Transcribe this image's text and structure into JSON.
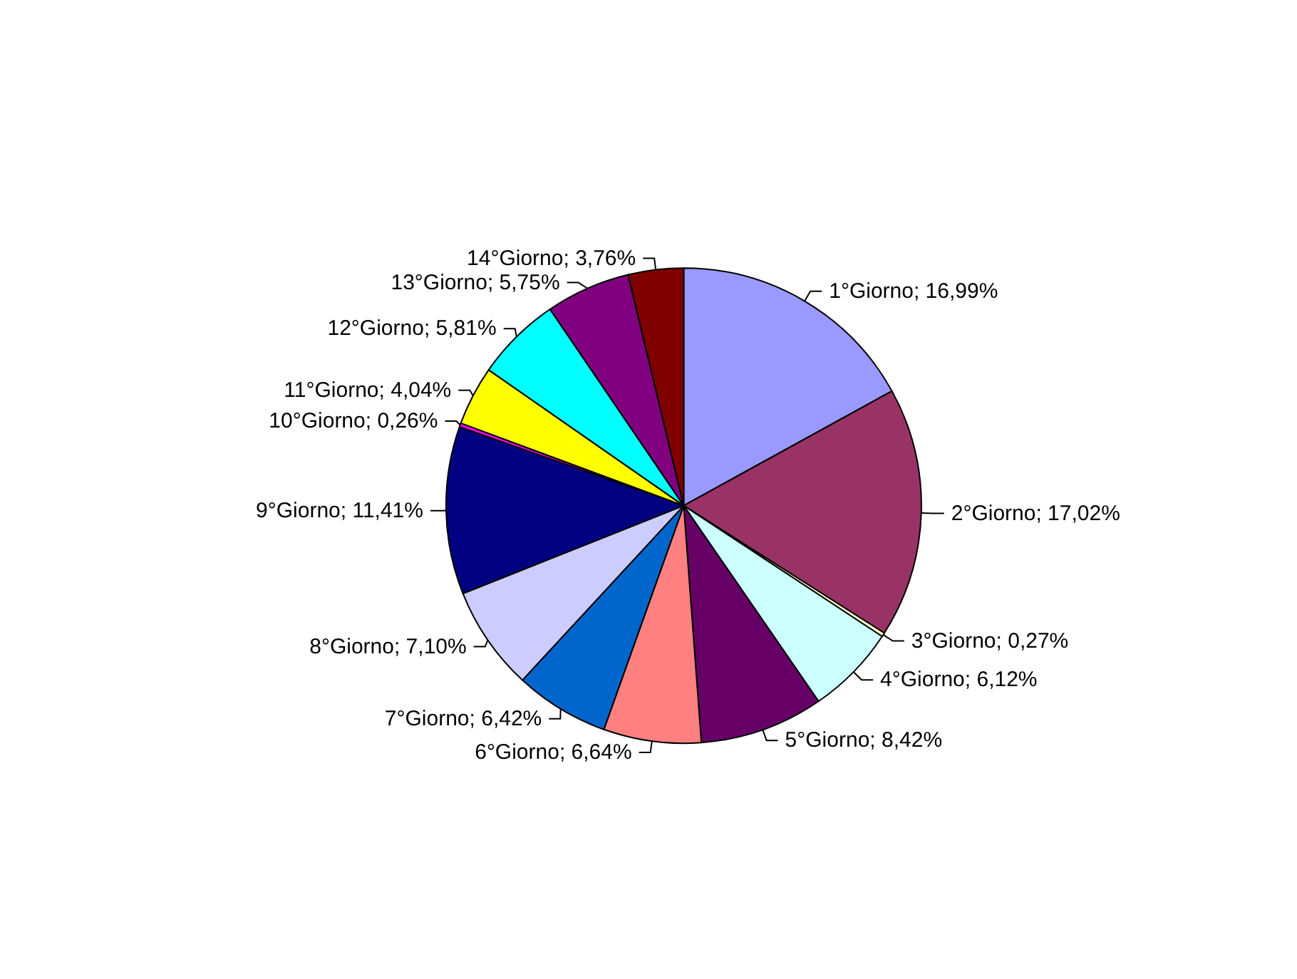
{
  "chart_data": {
    "type": "pie",
    "categories": [
      "1°Giorno",
      "2°Giorno",
      "3°Giorno",
      "4°Giorno",
      "5°Giorno",
      "6°Giorno",
      "7°Giorno",
      "8°Giorno",
      "9°Giorno",
      "10°Giorno",
      "11°Giorno",
      "12°Giorno",
      "13°Giorno",
      "14°Giorno"
    ],
    "values": [
      16.99,
      17.02,
      0.27,
      6.12,
      8.42,
      6.64,
      6.42,
      7.1,
      11.41,
      0.26,
      4.04,
      5.81,
      5.75,
      3.76
    ],
    "value_labels": [
      "16,99%",
      "17,02%",
      "0,27%",
      "6,12%",
      "8,42%",
      "6,64%",
      "6,42%",
      "7,10%",
      "11,41%",
      "0,26%",
      "4,04%",
      "5,81%",
      "5,75%",
      "3,76%"
    ],
    "colors": [
      "#9999ff",
      "#993366",
      "#ffffcc",
      "#ccffff",
      "#660066",
      "#ff8080",
      "#0066cc",
      "#ccccff",
      "#000080",
      "#ff00ff",
      "#ffff00",
      "#00ffff",
      "#800080",
      "#800000"
    ],
    "legend": false
  }
}
